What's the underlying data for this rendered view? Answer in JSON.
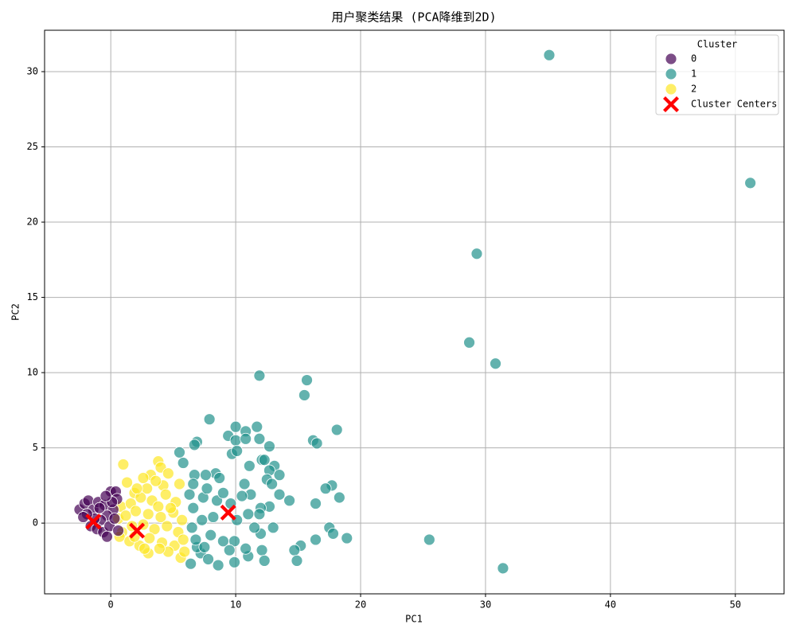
{
  "chart_data": {
    "type": "scatter",
    "title": "用户聚类结果 (PCA降维到2D)",
    "x_label": "PC1",
    "y_label": "PC2",
    "xlim": [
      -5.3,
      53.9
    ],
    "ylim": [
      -4.7,
      32.75
    ],
    "xticks": [
      0,
      10,
      20,
      30,
      40,
      50
    ],
    "yticks": [
      0,
      5,
      10,
      15,
      20,
      25,
      30
    ],
    "grid": true,
    "legend_title": "Cluster",
    "legend_position": "upper-right",
    "point_opacity": 0.7,
    "series": [
      {
        "name": "0",
        "color": "#440154",
        "x": [
          -2.5,
          -2.1,
          -1.8,
          -1.4,
          -1.0,
          -0.5,
          0.0,
          0.4,
          0.5,
          0.2,
          -0.3,
          -0.8,
          -1.3,
          -1.9,
          -1.6,
          -1.1,
          -0.6,
          -0.1,
          0.3,
          0.6,
          -0.3,
          -0.9,
          -2.2,
          0.1,
          -0.4
        ],
        "values": [
          0.9,
          1.3,
          1.5,
          0.9,
          1.4,
          1.2,
          2.1,
          2.1,
          1.6,
          0.9,
          0.5,
          0.2,
          0.3,
          0.6,
          -0.2,
          -0.4,
          -0.6,
          -0.2,
          0.3,
          -0.5,
          -0.9,
          1.0,
          0.4,
          1.4,
          1.8
        ]
      },
      {
        "name": "1",
        "color": "#21918c",
        "x": [
          35.1,
          51.2,
          29.3,
          28.7,
          30.8,
          31.4,
          25.5,
          11.9,
          15.7,
          15.5,
          7.9,
          10.0,
          11.7,
          18.1,
          10.8,
          9.4,
          16.2,
          10.0,
          10.8,
          11.9,
          6.9,
          6.7,
          12.7,
          16.5,
          9.7,
          5.5,
          10.1,
          5.8,
          12.1,
          12.3,
          11.1,
          13.1,
          12.7,
          13.5,
          6.7,
          8.4,
          7.6,
          12.5,
          12.9,
          10.7,
          17.7,
          17.2,
          13.5,
          14.3,
          18.3,
          11.2,
          16.4,
          12.7,
          12.0,
          11.9,
          10.1,
          17.5,
          17.8,
          18.9,
          16.4,
          15.2,
          14.7,
          14.9,
          12.1,
          12.3,
          11.0,
          8.6,
          13.0,
          12.0,
          11.5,
          10.8,
          9.9,
          7.2,
          6.4,
          6.9,
          7.5,
          8.0,
          9.0,
          9.9,
          6.5,
          7.3,
          8.2,
          6.6,
          7.4,
          8.5,
          6.3,
          7.7,
          9.0,
          9.6,
          10.5,
          11.0,
          6.6,
          8.7,
          9.5,
          7.8,
          6.8
        ],
        "values": [
          31.1,
          22.6,
          17.9,
          12.0,
          10.6,
          -3.0,
          -1.1,
          9.8,
          9.5,
          8.5,
          6.9,
          6.4,
          6.4,
          6.2,
          6.1,
          5.8,
          5.5,
          5.5,
          5.6,
          5.6,
          5.4,
          5.2,
          5.1,
          5.3,
          4.6,
          4.7,
          4.8,
          4.0,
          4.2,
          4.2,
          3.8,
          3.8,
          3.5,
          3.2,
          3.2,
          3.3,
          3.2,
          2.9,
          2.6,
          2.6,
          2.5,
          2.3,
          1.9,
          1.5,
          1.7,
          1.9,
          1.3,
          1.1,
          1.0,
          0.6,
          0.2,
          -0.3,
          -0.7,
          -1.0,
          -1.1,
          -1.5,
          -1.8,
          -2.5,
          -1.8,
          -2.5,
          -2.2,
          -2.8,
          -0.3,
          -0.7,
          -0.3,
          -1.7,
          -2.6,
          -2.0,
          -2.7,
          -1.6,
          -1.6,
          -0.8,
          -1.2,
          -1.2,
          -0.3,
          0.2,
          0.4,
          1.0,
          1.7,
          1.5,
          1.9,
          2.3,
          2.0,
          1.3,
          1.8,
          0.6,
          2.6,
          3.0,
          -1.8,
          -2.4,
          -1.1
        ]
      },
      {
        "name": "2",
        "color": "#fde725",
        "x": [
          1.0,
          1.3,
          3.8,
          4.0,
          3.2,
          2.6,
          4.6,
          5.5,
          1.9,
          2.9,
          4.2,
          0.8,
          1.6,
          2.4,
          3.3,
          4.4,
          5.2,
          3.8,
          0.6,
          1.2,
          2.0,
          3.0,
          4.0,
          5.0,
          5.7,
          0.9,
          1.7,
          2.6,
          3.5,
          4.5,
          5.4,
          1.5,
          2.3,
          3.1,
          4.1,
          5.1,
          5.8,
          3.0,
          4.6,
          5.6,
          2.7,
          1.9,
          0.7,
          4.8,
          3.6,
          2.1,
          5.9,
          3.9
        ],
        "values": [
          3.9,
          2.7,
          4.1,
          3.7,
          3.2,
          3.0,
          3.3,
          2.6,
          2.0,
          2.3,
          2.5,
          1.1,
          1.3,
          1.7,
          1.5,
          1.9,
          1.4,
          1.1,
          0.3,
          0.5,
          0.8,
          0.6,
          0.4,
          0.7,
          0.2,
          -0.6,
          -0.2,
          -0.1,
          -0.4,
          -0.2,
          -0.6,
          -1.2,
          -1.5,
          -1.0,
          -1.3,
          -1.5,
          -1.1,
          -2.0,
          -1.9,
          -2.3,
          -1.7,
          -0.9,
          -0.9,
          1.0,
          2.8,
          2.3,
          -1.9,
          -1.7
        ]
      },
      {
        "name": "Cluster Centers",
        "color": "#ff0000",
        "marker": "X",
        "x": [
          -1.4,
          2.1,
          9.4
        ],
        "values": [
          0.1,
          -0.5,
          0.7
        ]
      }
    ]
  }
}
